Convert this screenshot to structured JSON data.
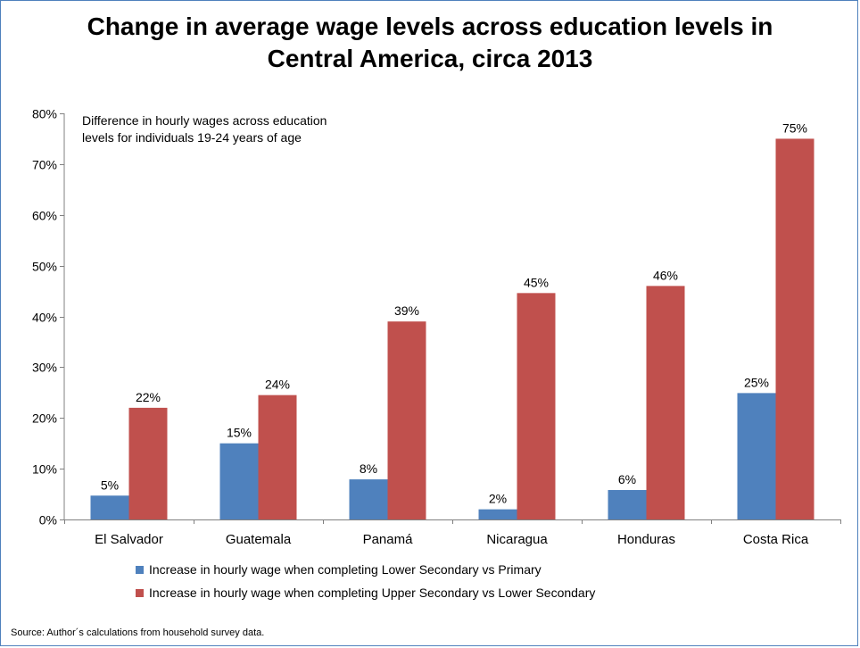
{
  "title_lines": [
    "Change in average wage levels across education levels in",
    "Central America, circa 2013"
  ],
  "note_lines": [
    "Difference in hourly wages across education",
    "levels for individuals 19-24 years of age"
  ],
  "source": "Source: Author´s calculations from household survey data.",
  "colors": {
    "series1": "#4f81bd",
    "series2": "#c0504d",
    "border": "#4f81bd"
  },
  "chart_data": {
    "type": "bar",
    "categories": [
      "El Salvador",
      "Guatemala",
      "Panamá",
      "Nicaragua",
      "Honduras",
      "Costa Rica"
    ],
    "series": [
      {
        "name": "Increase in hourly wage when completing Lower Secondary vs Primary",
        "values": [
          0.047,
          0.15,
          0.079,
          0.02,
          0.058,
          0.249
        ],
        "labels": [
          "5%",
          "15%",
          "8%",
          "2%",
          "6%",
          "25%"
        ]
      },
      {
        "name": "Increase in hourly wage when completing Upper Secondary vs Lower Secondary",
        "values": [
          0.22,
          0.245,
          0.39,
          0.446,
          0.46,
          0.75
        ],
        "labels": [
          "22%",
          "24%",
          "39%",
          "45%",
          "46%",
          "75%"
        ]
      }
    ],
    "ylim": [
      0,
      0.8
    ],
    "yticks": [
      0,
      0.1,
      0.2,
      0.3,
      0.4,
      0.5,
      0.6,
      0.7,
      0.8
    ],
    "ytick_labels": [
      "0%",
      "10%",
      "20%",
      "30%",
      "40%",
      "50%",
      "60%",
      "70%",
      "80%"
    ],
    "grid": false,
    "legend_position": "bottom"
  }
}
